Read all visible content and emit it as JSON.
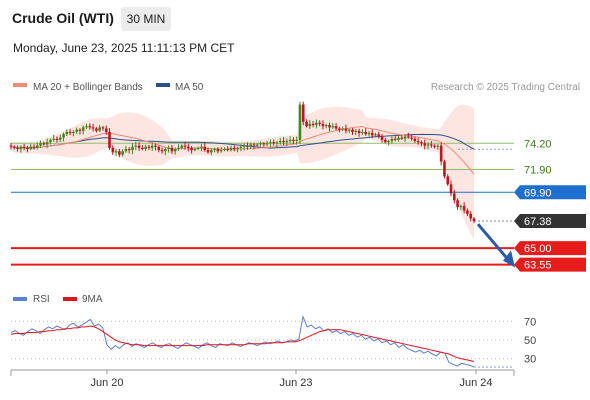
{
  "header": {
    "title": "Crude Oil (WTI)",
    "timeframe": "30 MIN",
    "datetime": "Monday, June 23, 2025 11:11:13 PM CET"
  },
  "legend": {
    "ma20": "MA 20 + Bollinger Bands",
    "ma50": "MA 50",
    "credit": "Research © 2025 Trading Central"
  },
  "colors": {
    "candle_up": "#3a8a1e",
    "candle_down": "#c0141e",
    "ma20": "#f08a78",
    "ma50": "#2c4f8c",
    "band_fill": "#fde0dc",
    "level_green": "#8fbf6a",
    "level_blue": "#1f6fd1",
    "level_red": "#e81b1b",
    "current": "#333333",
    "rsi": "#5b7fd6",
    "rsi_ma": "#e0161e",
    "arrow": "#2d5aa8"
  },
  "chart_data": [
    {
      "type": "candlestick",
      "x_labels": [
        "Jun 20",
        "Jun 23",
        "Jun 24"
      ],
      "y_range": [
        62.2,
        78.0
      ],
      "levels": [
        {
          "label": "74.20",
          "value": 74.2,
          "kind": "resistance"
        },
        {
          "label": "71.90",
          "value": 71.9,
          "kind": "resistance"
        },
        {
          "label": "69.90",
          "value": 69.9,
          "kind": "pivot"
        },
        {
          "label": "67.38",
          "value": 67.38,
          "kind": "current"
        },
        {
          "label": "65.00",
          "value": 65.0,
          "kind": "support"
        },
        {
          "label": "63.55",
          "value": 63.55,
          "kind": "support"
        }
      ],
      "close": [
        73.9,
        73.8,
        73.7,
        73.9,
        73.8,
        73.7,
        73.9,
        73.8,
        74.0,
        74.2,
        74.1,
        74.3,
        74.5,
        74.6,
        74.5,
        74.7,
        75.0,
        75.2,
        75.1,
        75.2,
        75.4,
        75.3,
        75.6,
        75.7,
        75.6,
        75.5,
        75.3,
        75.6,
        75.5,
        75.2,
        73.8,
        73.4,
        73.5,
        73.2,
        73.5,
        73.7,
        73.6,
        73.9,
        74.0,
        73.8,
        73.7,
        73.9,
        73.8,
        74.0,
        73.9,
        73.6,
        73.5,
        73.7,
        73.8,
        73.5,
        73.7,
        73.8,
        74.0,
        73.9,
        73.8,
        73.6,
        73.7,
        73.8,
        73.9,
        73.6,
        73.4,
        73.6,
        73.7,
        73.5,
        73.6,
        73.7,
        73.6,
        73.8,
        73.7,
        73.8,
        73.9,
        74.0,
        73.9,
        74.1,
        74.0,
        74.1,
        74.2,
        74.1,
        74.2,
        74.3,
        74.2,
        74.3,
        74.4,
        74.3,
        74.4,
        74.5,
        74.4,
        74.5,
        77.6,
        76.1,
        75.7,
        75.9,
        75.8,
        76.0,
        75.9,
        75.7,
        75.8,
        75.6,
        75.7,
        75.5,
        75.4,
        75.5,
        75.3,
        75.4,
        75.2,
        75.3,
        75.1,
        75.2,
        75.0,
        75.1,
        74.9,
        75.0,
        74.8,
        74.5,
        74.3,
        74.4,
        74.6,
        74.5,
        74.7,
        74.6,
        74.8,
        74.7,
        74.6,
        74.4,
        74.3,
        74.2,
        74.0,
        74.1,
        74.0,
        73.9,
        74.0,
        72.6,
        71.3,
        70.6,
        69.8,
        69.2,
        68.6,
        68.7,
        68.3,
        68.0,
        67.6,
        67.38
      ],
      "rsi": {
        "levels": [
          70,
          50,
          30
        ],
        "y_range": [
          20,
          80
        ],
        "values": [
          58,
          60,
          57,
          55,
          59,
          62,
          60,
          57,
          61,
          64,
          62,
          65,
          63,
          61,
          66,
          68,
          64,
          66,
          69,
          72,
          65,
          67,
          63,
          45,
          40,
          44,
          41,
          45,
          47,
          43,
          46,
          44,
          42,
          45,
          47,
          44,
          42,
          45,
          46,
          43,
          41,
          44,
          47,
          45,
          43,
          41,
          45,
          47,
          44,
          42,
          46,
          45,
          44,
          47,
          45,
          43,
          45,
          47,
          46,
          44,
          46,
          48,
          46,
          47,
          49,
          47,
          48,
          50,
          49,
          51,
          75,
          64,
          66,
          62,
          64,
          60,
          62,
          58,
          60,
          57,
          59,
          55,
          57,
          53,
          55,
          51,
          53,
          49,
          51,
          47,
          49,
          45,
          47,
          42,
          45,
          41,
          39,
          37,
          39,
          36,
          38,
          35,
          33,
          37,
          36,
          26,
          24,
          22,
          25,
          24,
          23,
          21
        ],
        "ma": [
          56,
          57,
          57,
          57,
          58,
          58,
          58,
          59,
          59,
          60,
          60,
          61,
          61,
          62,
          62,
          63,
          63,
          64,
          64,
          65,
          64,
          62,
          59,
          56,
          53,
          50,
          48,
          47,
          46,
          45,
          45,
          45,
          44,
          44,
          44,
          44,
          44,
          44,
          44,
          44,
          44,
          44,
          44,
          44,
          44,
          44,
          44,
          45,
          45,
          45,
          45,
          45,
          45,
          45,
          45,
          45,
          45,
          46,
          46,
          46,
          46,
          46,
          47,
          47,
          47,
          47,
          48,
          48,
          48,
          49,
          51,
          53,
          55,
          57,
          59,
          60,
          61,
          61,
          61,
          61,
          60,
          59,
          58,
          57,
          56,
          55,
          54,
          53,
          52,
          51,
          50,
          49,
          48,
          47,
          46,
          45,
          44,
          43,
          42,
          41,
          40,
          39,
          38,
          37,
          36,
          35,
          33,
          31,
          30,
          29,
          28,
          27
        ]
      },
      "rsi_legend": {
        "rsi": "RSI",
        "ma": "9MA"
      }
    }
  ]
}
